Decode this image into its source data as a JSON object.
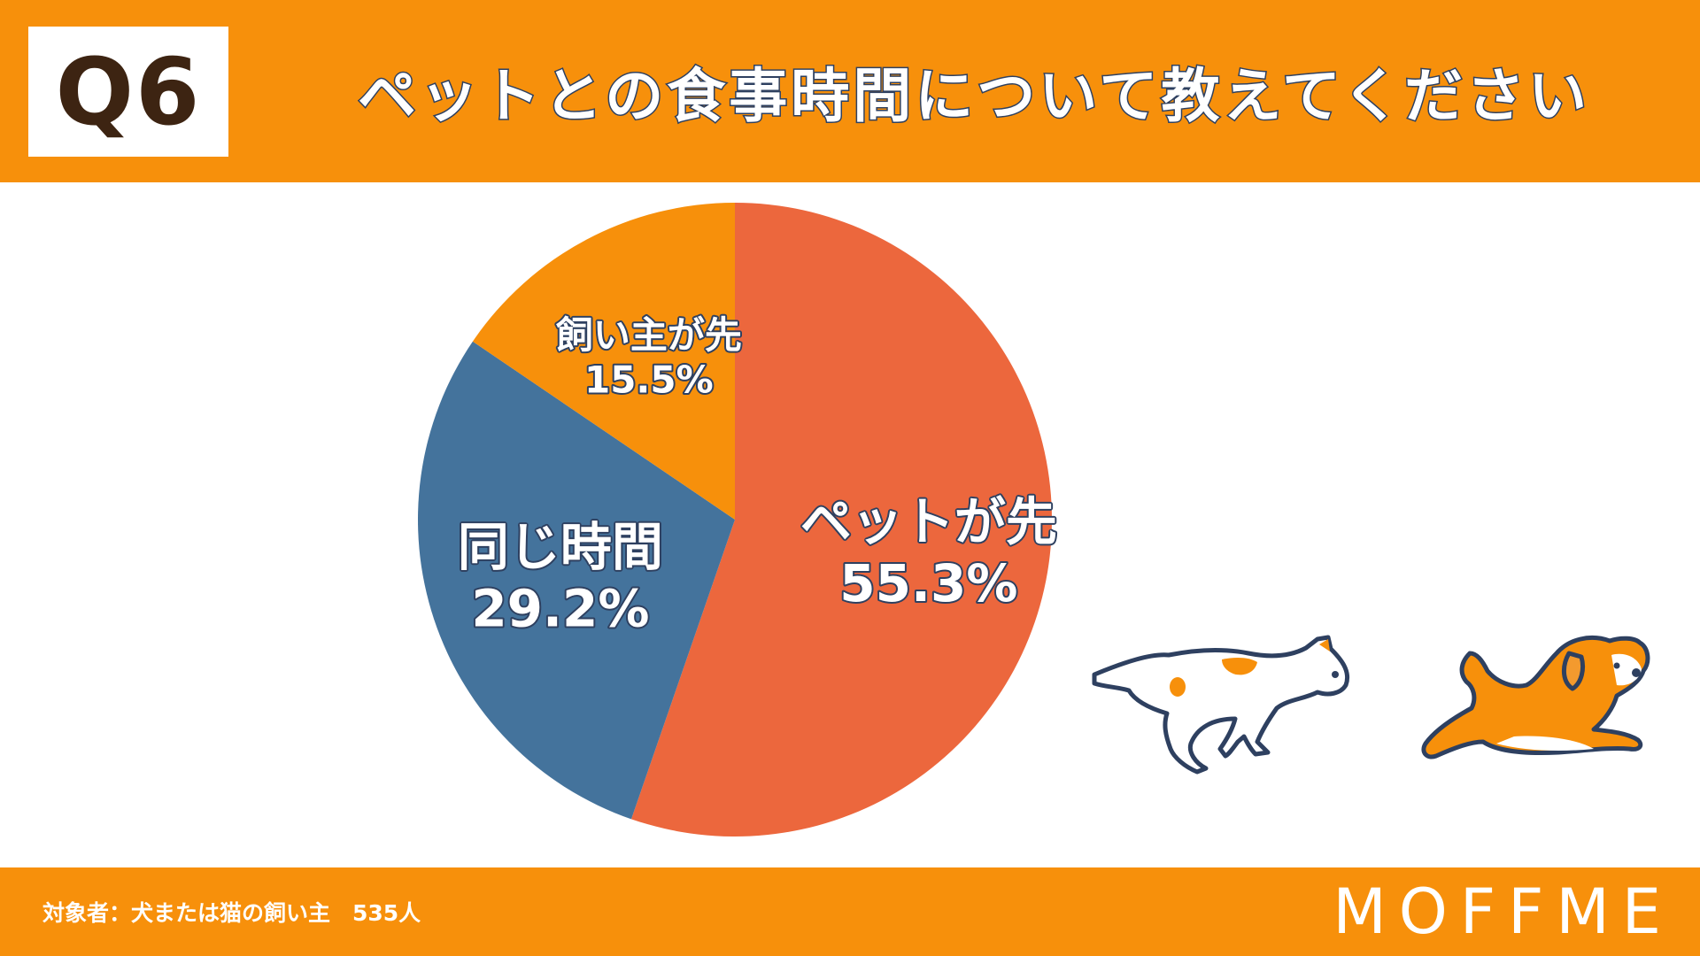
{
  "header": {
    "question_no": "Q6",
    "title": "ペットとの食事時間について教えてください"
  },
  "footer": {
    "note": "対象者：犬または猫の飼い主　535人",
    "brand": "MOFFME"
  },
  "colors": {
    "accent": "#f7900b",
    "pet_first": "#ec673d",
    "same_time": "#44739c",
    "owner_first": "#f7900b",
    "outline": "#2e4060"
  },
  "chart_data": {
    "type": "pie",
    "title": "",
    "slices": [
      {
        "label": "ペットが先",
        "value": 55.3,
        "value_label": "55.3%",
        "color": "#ec673d"
      },
      {
        "label": "同じ時間",
        "value": 29.2,
        "value_label": "29.2%",
        "color": "#44739c"
      },
      {
        "label": "飼い主が先",
        "value": 15.5,
        "value_label": "15.5%",
        "color": "#f7900b"
      }
    ],
    "start": "12 o'clock",
    "direction": "clockwise",
    "legend": "none"
  },
  "illustrations": [
    "running-cat-icon",
    "running-dog-icon"
  ]
}
